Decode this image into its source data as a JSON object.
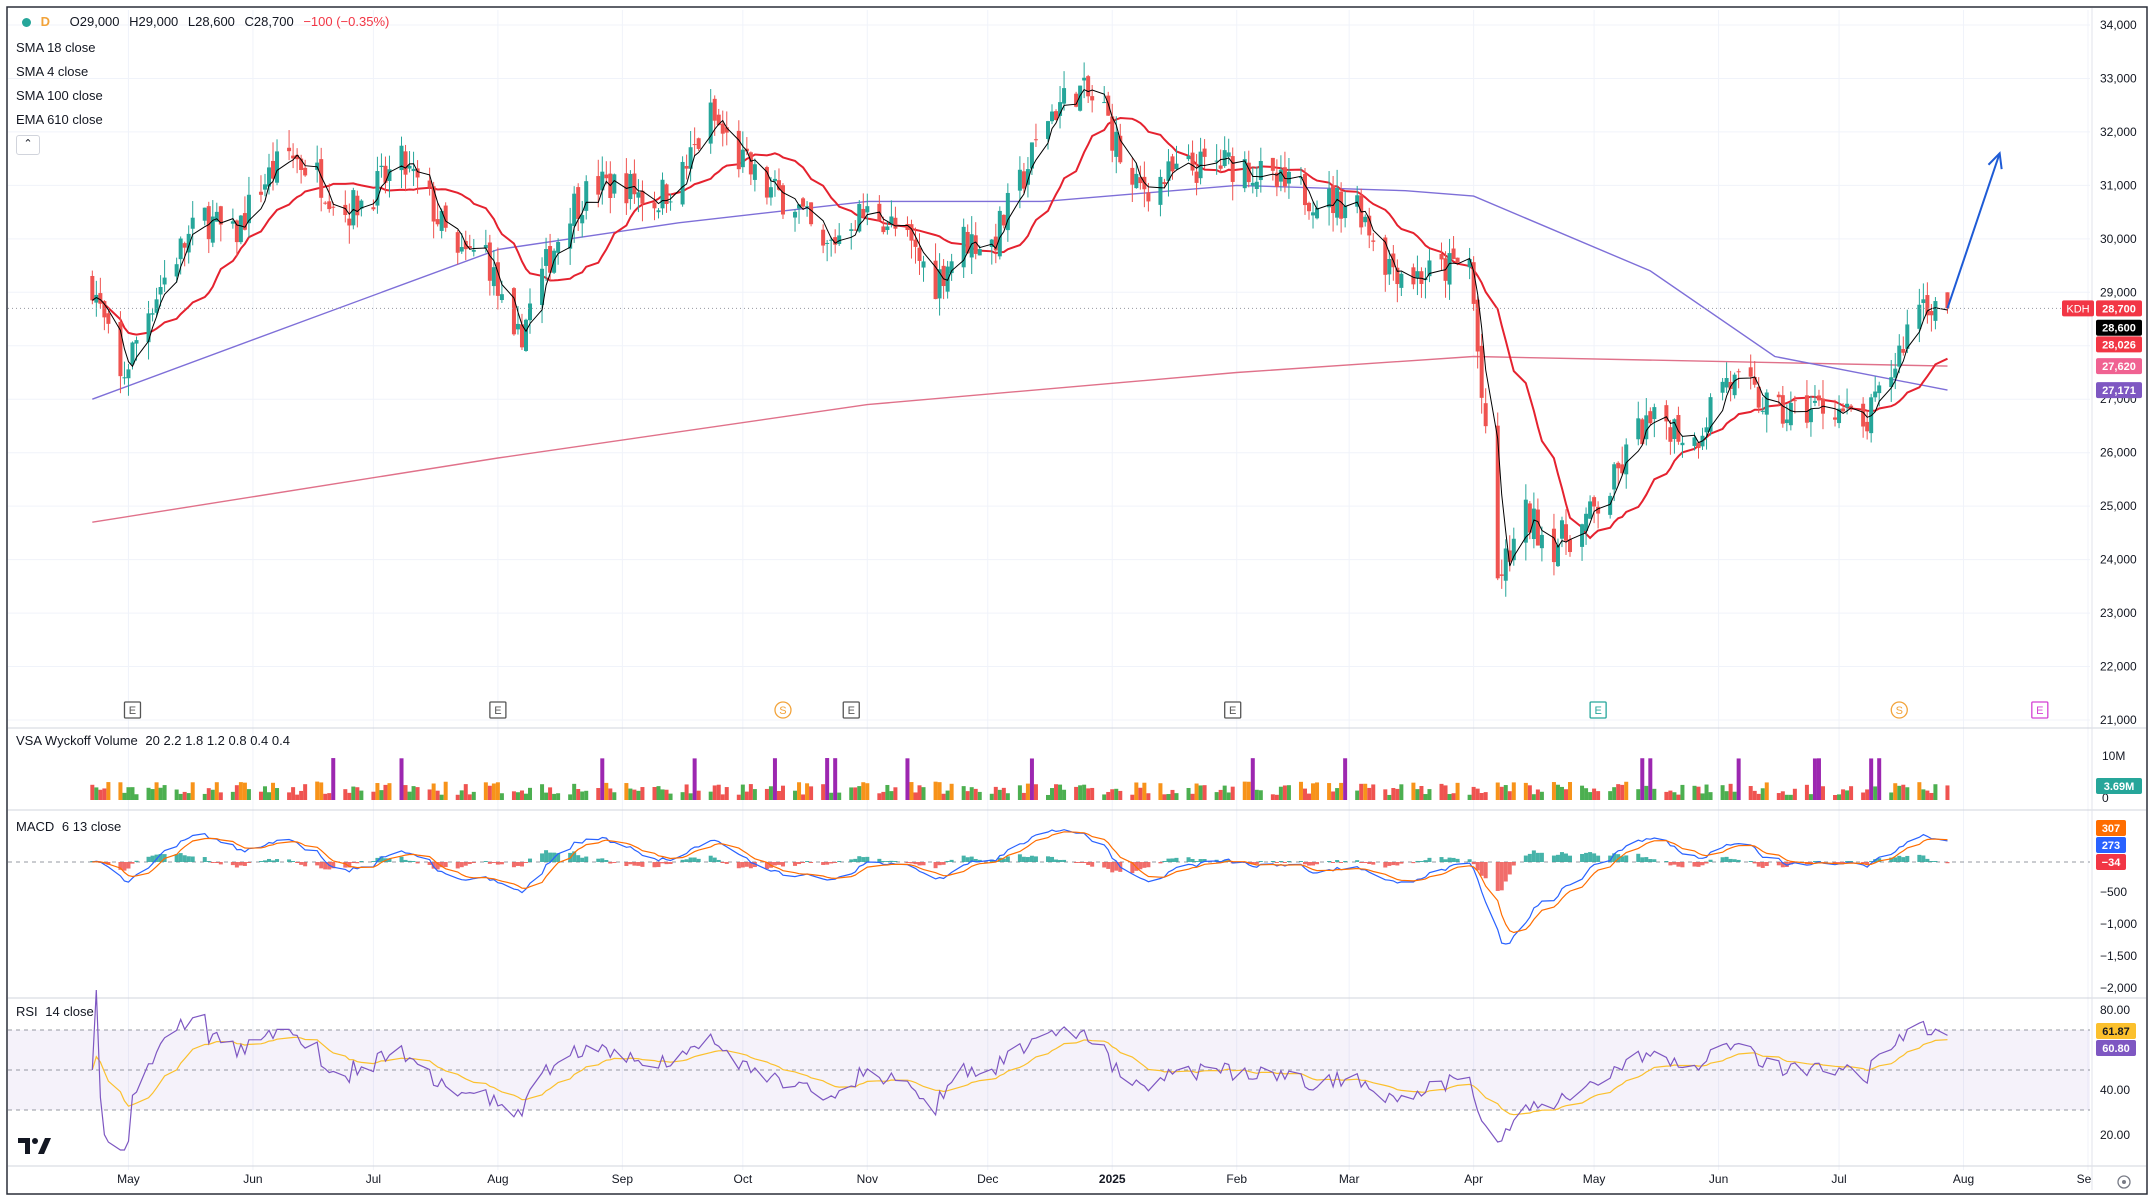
{
  "header": {
    "interval": "D",
    "ohlc": {
      "o": "O29,000",
      "h": "H29,000",
      "l": "L28,600",
      "c": "C28,700",
      "chg": "−100 (−0.35%)"
    },
    "indicators": [
      "SMA 18 close",
      "SMA 4 close",
      "SMA 100 close",
      "EMA 610 close"
    ],
    "collapse_icon": "chevron-up-icon"
  },
  "price_axis": {
    "ticks": [
      "34,000",
      "33,000",
      "32,000",
      "31,000",
      "30,000",
      "29,000",
      "28,000",
      "27,000",
      "26,000",
      "25,000",
      "24,000",
      "23,000",
      "22,000",
      "21,000"
    ],
    "last_price_line": 28700,
    "labels": [
      {
        "text": "28,700",
        "value": 28700,
        "color": "#f23645",
        "symbol": "KDH"
      },
      {
        "text": "28,600",
        "value": 28600,
        "color": "#000000"
      },
      {
        "text": "28,026",
        "value": 28026,
        "color": "#f23645"
      },
      {
        "text": "27,620",
        "value": 27620,
        "color": "#f06292"
      },
      {
        "text": "27,171",
        "value": 27171,
        "color": "#7e57c2"
      }
    ]
  },
  "x_axis": {
    "labels": [
      {
        "text": "May",
        "bold": false
      },
      {
        "text": "Jun",
        "bold": false
      },
      {
        "text": "Jul",
        "bold": false
      },
      {
        "text": "Aug",
        "bold": false
      },
      {
        "text": "Sep",
        "bold": false
      },
      {
        "text": "Oct",
        "bold": false
      },
      {
        "text": "Nov",
        "bold": false
      },
      {
        "text": "Dec",
        "bold": false
      },
      {
        "text": "2025",
        "bold": true
      },
      {
        "text": "Feb",
        "bold": false
      },
      {
        "text": "Mar",
        "bold": false
      },
      {
        "text": "Apr",
        "bold": false
      },
      {
        "text": "May",
        "bold": false
      },
      {
        "text": "Jun",
        "bold": false
      },
      {
        "text": "Jul",
        "bold": false
      },
      {
        "text": "Aug",
        "bold": false
      },
      {
        "text": "Se",
        "bold": false
      }
    ]
  },
  "events": [
    {
      "type": "E",
      "color": "#555555"
    },
    {
      "type": "E",
      "color": "#555555"
    },
    {
      "type": "S",
      "color": "#f2a33a"
    },
    {
      "type": "E",
      "color": "#555555"
    },
    {
      "type": "E",
      "color": "#555555"
    },
    {
      "type": "E",
      "color": "#26a69a"
    },
    {
      "type": "S",
      "color": "#f2a33a"
    },
    {
      "type": "E",
      "color": "#d442d4"
    }
  ],
  "volume": {
    "title": "VSA Wyckoff Volume",
    "params": "20 2.2 1.8 1.2 0.8 0.4 0.4",
    "ticks": [
      "10M",
      "0"
    ],
    "value_label": "3.69M",
    "value_color": "#26a69a"
  },
  "macd": {
    "title": "MACD",
    "params": "6 13 close",
    "ticks": [
      "−500",
      "−1,000",
      "−1,500",
      "−2,000"
    ],
    "labels": [
      {
        "text": "307",
        "color": "#ff6d00"
      },
      {
        "text": "273",
        "color": "#2962ff"
      },
      {
        "text": "−34",
        "color": "#f23645"
      }
    ]
  },
  "rsi": {
    "title": "RSI",
    "params": "14 close",
    "ticks": [
      "80.00",
      "40.00",
      "20.00"
    ],
    "labels": [
      {
        "text": "61.87",
        "color": "#fbc02d"
      },
      {
        "text": "60.80",
        "color": "#7e57c2"
      }
    ]
  },
  "logo": "tradingview-logo",
  "colors": {
    "up": "#26a69a",
    "down": "#ef5350",
    "sma18": "#e5222f",
    "sma4": "#000000",
    "sma100": "#7e6fd8",
    "ema610": "#e0718a",
    "arrow": "#1e5bd6"
  },
  "chart_data": {
    "type": "candlestick",
    "symbol": "KDH",
    "ylim": [
      21000,
      34000
    ],
    "last": {
      "open": 29000,
      "high": 29000,
      "low": 28600,
      "close": 28700,
      "change": -100,
      "change_pct": -0.35
    },
    "close_path": [
      {
        "date": "2024-04-22",
        "close": 29200
      },
      {
        "date": "2024-04-29",
        "close": 27300
      },
      {
        "date": "2024-05-06",
        "close": 28700
      },
      {
        "date": "2024-05-13",
        "close": 29700
      },
      {
        "date": "2024-05-20",
        "close": 30400
      },
      {
        "date": "2024-05-27",
        "close": 30000
      },
      {
        "date": "2024-06-03",
        "close": 31000
      },
      {
        "date": "2024-06-10",
        "close": 31600
      },
      {
        "date": "2024-06-17",
        "close": 31200
      },
      {
        "date": "2024-06-24",
        "close": 30500
      },
      {
        "date": "2024-07-01",
        "close": 30900
      },
      {
        "date": "2024-07-08",
        "close": 31400
      },
      {
        "date": "2024-07-15",
        "close": 30700
      },
      {
        "date": "2024-07-22",
        "close": 29600
      },
      {
        "date": "2024-07-29",
        "close": 29800
      },
      {
        "date": "2024-08-05",
        "close": 27900
      },
      {
        "date": "2024-08-12",
        "close": 29300
      },
      {
        "date": "2024-08-19",
        "close": 30600
      },
      {
        "date": "2024-08-26",
        "close": 31000
      },
      {
        "date": "2024-09-02",
        "close": 31000
      },
      {
        "date": "2024-09-09",
        "close": 30700
      },
      {
        "date": "2024-09-16",
        "close": 31200
      },
      {
        "date": "2024-09-23",
        "close": 32300
      },
      {
        "date": "2024-09-30",
        "close": 31500
      },
      {
        "date": "2024-10-07",
        "close": 30900
      },
      {
        "date": "2024-10-14",
        "close": 30700
      },
      {
        "date": "2024-10-21",
        "close": 29700
      },
      {
        "date": "2024-10-28",
        "close": 30400
      },
      {
        "date": "2024-11-04",
        "close": 30500
      },
      {
        "date": "2024-11-11",
        "close": 29900
      },
      {
        "date": "2024-11-18",
        "close": 29200
      },
      {
        "date": "2024-11-25",
        "close": 30000
      },
      {
        "date": "2024-12-02",
        "close": 29900
      },
      {
        "date": "2024-12-09",
        "close": 31000
      },
      {
        "date": "2024-12-16",
        "close": 32300
      },
      {
        "date": "2024-12-23",
        "close": 32800
      },
      {
        "date": "2024-12-30",
        "close": 32400
      },
      {
        "date": "2025-01-06",
        "close": 30900
      },
      {
        "date": "2025-01-13",
        "close": 31100
      },
      {
        "date": "2025-01-20",
        "close": 31300
      },
      {
        "date": "2025-01-27",
        "close": 31400
      },
      {
        "date": "2025-02-03",
        "close": 31400
      },
      {
        "date": "2025-02-10",
        "close": 31000
      },
      {
        "date": "2025-02-17",
        "close": 30900
      },
      {
        "date": "2025-02-24",
        "close": 30700
      },
      {
        "date": "2025-03-03",
        "close": 30700
      },
      {
        "date": "2025-03-10",
        "close": 29600
      },
      {
        "date": "2025-03-17",
        "close": 29300
      },
      {
        "date": "2025-03-24",
        "close": 29400
      },
      {
        "date": "2025-03-31",
        "close": 29600
      },
      {
        "date": "2025-04-07",
        "close": 23600
      },
      {
        "date": "2025-04-14",
        "close": 24800
      },
      {
        "date": "2025-04-21",
        "close": 24300
      },
      {
        "date": "2025-04-28",
        "close": 24600
      },
      {
        "date": "2025-05-05",
        "close": 25300
      },
      {
        "date": "2025-05-12",
        "close": 26400
      },
      {
        "date": "2025-05-19",
        "close": 26600
      },
      {
        "date": "2025-05-26",
        "close": 26200
      },
      {
        "date": "2025-06-02",
        "close": 27400
      },
      {
        "date": "2025-06-09",
        "close": 27100
      },
      {
        "date": "2025-06-16",
        "close": 26700
      },
      {
        "date": "2025-06-23",
        "close": 26800
      },
      {
        "date": "2025-06-30",
        "close": 26900
      },
      {
        "date": "2025-07-07",
        "close": 26400
      },
      {
        "date": "2025-07-14",
        "close": 27500
      },
      {
        "date": "2025-07-21",
        "close": 28900
      },
      {
        "date": "2025-07-28",
        "close": 28700
      }
    ],
    "sma100": [
      {
        "date": "2024-04-22",
        "value": 27000
      },
      {
        "date": "2024-06-15",
        "value": 28500
      },
      {
        "date": "2024-08-01",
        "value": 29800
      },
      {
        "date": "2024-09-15",
        "value": 30300
      },
      {
        "date": "2024-11-01",
        "value": 30700
      },
      {
        "date": "2024-12-15",
        "value": 30700
      },
      {
        "date": "2025-02-01",
        "value": 31000
      },
      {
        "date": "2025-03-15",
        "value": 30900
      },
      {
        "date": "2025-04-01",
        "value": 30800
      },
      {
        "date": "2025-05-15",
        "value": 29400
      },
      {
        "date": "2025-06-15",
        "value": 27800
      },
      {
        "date": "2025-07-28",
        "value": 27171
      }
    ],
    "ema610": [
      {
        "date": "2024-04-22",
        "value": 24700
      },
      {
        "date": "2024-08-01",
        "value": 25900
      },
      {
        "date": "2024-11-01",
        "value": 26900
      },
      {
        "date": "2025-02-01",
        "value": 27500
      },
      {
        "date": "2025-04-01",
        "value": 27800
      },
      {
        "date": "2025-07-28",
        "value": 27620
      }
    ],
    "projection_arrow": {
      "from": {
        "date": "2025-07-28",
        "value": 28700
      },
      "to": {
        "date": "2025-08-10",
        "value": 31600
      }
    }
  }
}
